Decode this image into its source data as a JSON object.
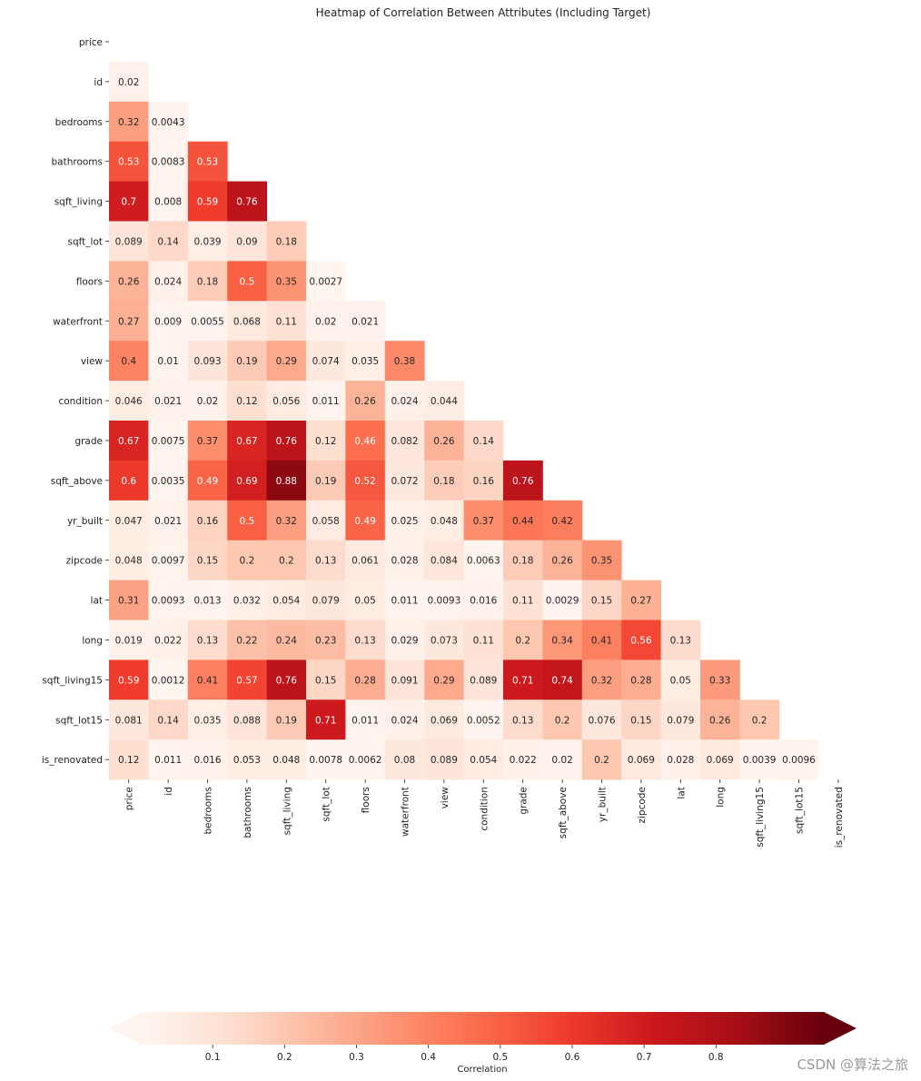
{
  "chart_data": {
    "type": "heatmap",
    "title": "Heatmap of Correlation Between Attributes (Including Target)",
    "labels": [
      "price",
      "id",
      "bedrooms",
      "bathrooms",
      "sqft_living",
      "sqft_lot",
      "floors",
      "waterfront",
      "view",
      "condition",
      "grade",
      "sqft_above",
      "yr_built",
      "zipcode",
      "lat",
      "long",
      "sqft_living15",
      "sqft_lot15",
      "is_renovated"
    ],
    "rows": [
      [],
      [
        0.02
      ],
      [
        0.32,
        0.0043
      ],
      [
        0.53,
        0.0083,
        0.53
      ],
      [
        0.7,
        0.008,
        0.59,
        0.76
      ],
      [
        0.089,
        0.14,
        0.039,
        0.09,
        0.18
      ],
      [
        0.26,
        0.024,
        0.18,
        0.5,
        0.35,
        0.0027
      ],
      [
        0.27,
        0.009,
        0.0055,
        0.068,
        0.11,
        0.02,
        0.021
      ],
      [
        0.4,
        0.01,
        0.093,
        0.19,
        0.29,
        0.074,
        0.035,
        0.38
      ],
      [
        0.046,
        0.021,
        0.02,
        0.12,
        0.056,
        0.011,
        0.26,
        0.024,
        0.044
      ],
      [
        0.67,
        0.0075,
        0.37,
        0.67,
        0.76,
        0.12,
        0.46,
        0.082,
        0.26,
        0.14
      ],
      [
        0.6,
        0.0035,
        0.49,
        0.69,
        0.88,
        0.19,
        0.52,
        0.072,
        0.18,
        0.16,
        0.76
      ],
      [
        0.047,
        0.021,
        0.16,
        0.5,
        0.32,
        0.058,
        0.49,
        0.025,
        0.048,
        0.37,
        0.44,
        0.42
      ],
      [
        0.048,
        0.0097,
        0.15,
        0.2,
        0.2,
        0.13,
        0.061,
        0.028,
        0.084,
        0.0063,
        0.18,
        0.26,
        0.35
      ],
      [
        0.31,
        0.0093,
        0.013,
        0.032,
        0.054,
        0.079,
        0.05,
        0.011,
        0.0093,
        0.016,
        0.11,
        0.0029,
        0.15,
        0.27
      ],
      [
        0.019,
        0.022,
        0.13,
        0.22,
        0.24,
        0.23,
        0.13,
        0.029,
        0.073,
        0.11,
        0.2,
        0.34,
        0.41,
        0.56,
        0.13
      ],
      [
        0.59,
        0.0012,
        0.41,
        0.57,
        0.76,
        0.15,
        0.28,
        0.091,
        0.29,
        0.089,
        0.71,
        0.74,
        0.32,
        0.28,
        0.05,
        0.33
      ],
      [
        0.081,
        0.14,
        0.035,
        0.088,
        0.19,
        0.71,
        0.011,
        0.024,
        0.069,
        0.0052,
        0.13,
        0.2,
        0.076,
        0.15,
        0.079,
        0.26,
        0.2
      ],
      [
        0.12,
        0.011,
        0.016,
        0.053,
        0.048,
        0.0078,
        0.0062,
        0.08,
        0.089,
        0.054,
        0.022,
        0.02,
        0.2,
        0.069,
        0.028,
        0.069,
        0.0039,
        0.0096
      ]
    ],
    "mask": "upper-triangle-including-diagonal",
    "colormap": "Reds",
    "colorbar": {
      "label": "Correlation",
      "orientation": "horizontal",
      "position": "bottom",
      "ticks": [
        0.1,
        0.2,
        0.3,
        0.4,
        0.5,
        0.6,
        0.7,
        0.8
      ],
      "range": [
        0,
        0.95
      ]
    }
  },
  "watermark": "CSDN @算法之旅"
}
